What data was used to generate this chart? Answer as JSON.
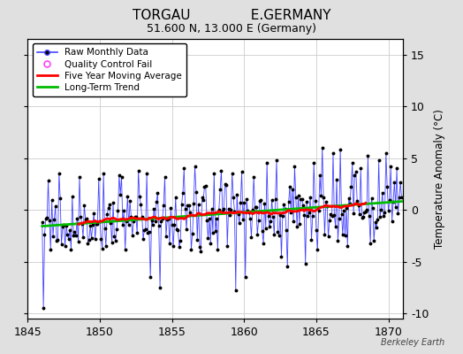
{
  "title": "TORGAU              E.GERMANY",
  "subtitle": "51.600 N, 13.000 E (Germany)",
  "ylabel": "Temperature Anomaly (°C)",
  "xlim": [
    1845.5,
    1871.0
  ],
  "ylim": [
    -10.5,
    16.5
  ],
  "yticks": [
    -10,
    -5,
    0,
    5,
    10,
    15
  ],
  "xticks": [
    1845,
    1850,
    1855,
    1860,
    1865,
    1870
  ],
  "background_color": "#e0e0e0",
  "plot_bg_color": "#ffffff",
  "raw_line_color": "#4444ff",
  "raw_marker_color": "#000000",
  "moving_avg_color": "#ff0000",
  "trend_color": "#00bb00",
  "qc_fail_color": "#ff44ff",
  "watermark": "Berkeley Earth",
  "seed": 77,
  "start_year": 1846,
  "end_year": 1870
}
